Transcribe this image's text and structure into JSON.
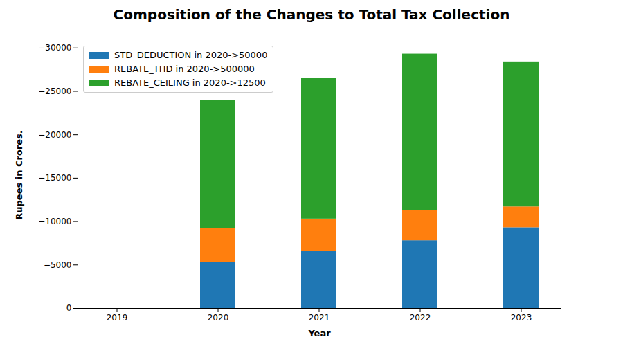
{
  "chart_data": {
    "type": "bar",
    "title": "Composition of the Changes to Total Tax Collection",
    "xlabel": "Year",
    "ylabel": "Rupees in Crores.",
    "categories": [
      "2019",
      "2020",
      "2021",
      "2022",
      "2023"
    ],
    "series": [
      {
        "name": "STD_DEDUCTION in 2020->50000",
        "color": "#1f77b4",
        "values": [
          0,
          -5300,
          -6600,
          -7800,
          -9300
        ]
      },
      {
        "name": "REBATE_THD in 2020->500000",
        "color": "#ff7f0e",
        "values": [
          0,
          -3900,
          -3700,
          -3500,
          -2400
        ]
      },
      {
        "name": "REBATE_CEILING in 2020->12500",
        "color": "#2ca02c",
        "values": [
          0,
          -14800,
          -16200,
          -18000,
          -16700
        ]
      }
    ],
    "stacked": true,
    "legend": "upper left",
    "grid": false,
    "ylim": [
      0,
      -30700
    ],
    "yticks": [
      0,
      -5000,
      -10000,
      -15000,
      -20000,
      -25000,
      -30000
    ]
  }
}
